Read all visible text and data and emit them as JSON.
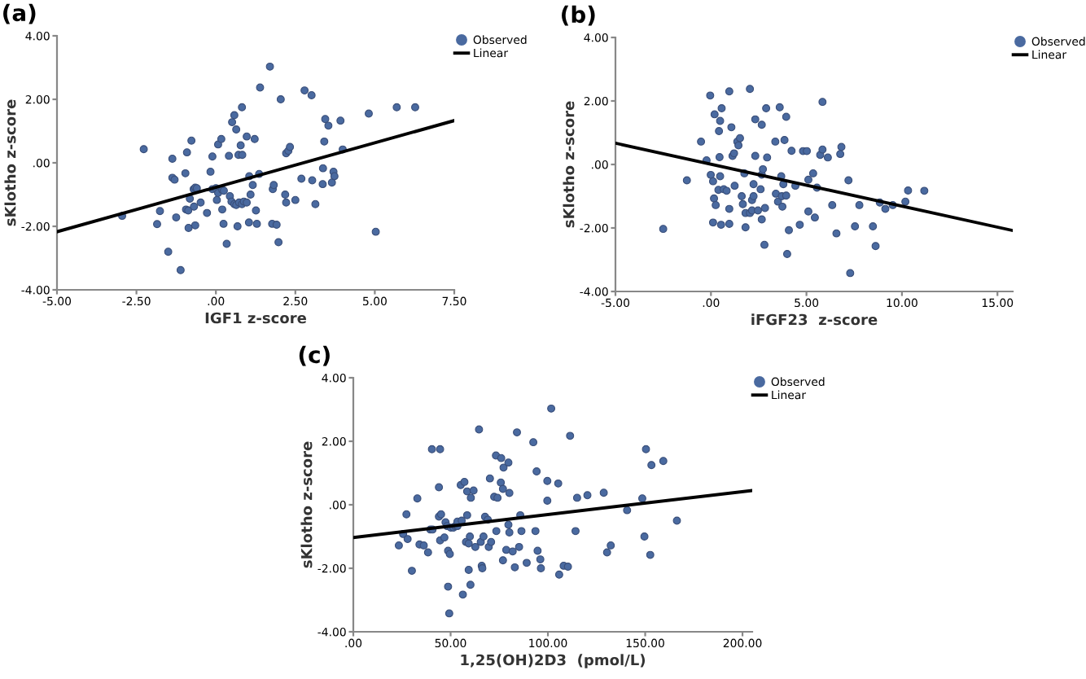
{
  "chart_data": [
    {
      "type": "scatter",
      "annotations": [
        "(a)"
      ],
      "xlabel": "IGF1 z-score",
      "ylabel": "sKlotho z-score",
      "legend": "top right",
      "xlim": [
        -5,
        7.5
      ],
      "ylim": [
        -4,
        4
      ],
      "xticks": [
        {
          "value": -5,
          "label": "-5.00"
        },
        {
          "value": -2.5,
          "label": "-2.50"
        },
        {
          "value": 0,
          "label": ".00"
        },
        {
          "value": 2.5,
          "label": "2.50"
        },
        {
          "value": 5,
          "label": "5.00"
        },
        {
          "value": 7.5,
          "label": "7.50"
        }
      ],
      "yticks": [
        {
          "value": -4,
          "label": "-4.00"
        },
        {
          "value": -2,
          "label": "-2.00"
        },
        {
          "value": 0,
          "label": ".00"
        },
        {
          "value": 2,
          "label": "2.00"
        },
        {
          "value": 4,
          "label": "4.00"
        }
      ],
      "series": [
        {
          "name": "Observed",
          "color": "#4a6aa0",
          "marker": "circle",
          "x": [
            -2.95,
            -2.27,
            -1.85,
            -1.76,
            -1.5,
            -1.37,
            -1.37,
            -1.3,
            -1.25,
            -1.11,
            -0.96,
            -0.91,
            -0.94,
            -0.87,
            -0.86,
            -0.82,
            -0.77,
            -0.7,
            -0.65,
            -0.6,
            -0.69,
            -0.65,
            -0.48,
            -0.28,
            -0.17,
            -0.11,
            -0.11,
            0.0,
            0.03,
            0.07,
            0.07,
            0.17,
            0.2,
            0.25,
            0.2,
            0.24,
            0.34,
            0.41,
            0.44,
            0.49,
            0.51,
            0.58,
            0.58,
            0.64,
            0.64,
            0.68,
            0.71,
            0.73,
            0.78,
            0.82,
            0.83,
            0.82,
            0.88,
            0.97,
            0.97,
            1.05,
            1.04,
            1.09,
            1.16,
            1.22,
            1.26,
            1.29,
            1.39,
            1.36,
            1.79,
            1.77,
            1.82,
            1.7,
            1.91,
            1.97,
            2.04,
            2.18,
            2.21,
            2.28,
            2.33,
            2.21,
            2.5,
            2.69,
            2.79,
            3.01,
            3.03,
            3.13,
            3.36,
            3.37,
            3.41,
            3.44,
            3.54,
            3.65,
            3.7,
            3.73,
            3.92,
            3.99,
            4.81,
            5.03,
            5.69,
            6.27
          ],
          "values": [
            -1.67,
            0.43,
            -1.93,
            -1.52,
            -2.8,
            0.13,
            -0.47,
            -0.53,
            -1.72,
            -3.38,
            -0.33,
            0.33,
            -1.47,
            -1.5,
            -2.05,
            -1.13,
            0.7,
            -0.83,
            -0.78,
            -0.8,
            -1.38,
            -1.97,
            -1.25,
            -1.58,
            -0.28,
            0.2,
            -0.83,
            -0.8,
            -1.17,
            -0.95,
            0.58,
            0.75,
            -0.85,
            -0.88,
            -1.47,
            -1.92,
            -2.55,
            0.22,
            -1.05,
            -1.22,
            1.28,
            1.5,
            -1.3,
            -1.33,
            1.05,
            -2.0,
            0.25,
            -1.25,
            0.55,
            1.75,
            0.25,
            -1.3,
            -1.22,
            -1.25,
            0.83,
            -0.42,
            -1.88,
            -1.0,
            -0.7,
            0.75,
            -1.5,
            -1.92,
            2.37,
            -0.35,
            -0.83,
            -1.92,
            -0.7,
            3.03,
            -1.95,
            -2.5,
            2.0,
            -1.0,
            0.3,
            0.38,
            0.5,
            -1.25,
            -1.17,
            -0.5,
            2.28,
            2.13,
            -0.55,
            -1.3,
            -0.67,
            -0.17,
            0.67,
            1.38,
            1.17,
            -0.62,
            -0.28,
            -0.42,
            1.33,
            0.42,
            1.55,
            -2.17,
            1.75,
            1.75
          ]
        },
        {
          "name": "Linear",
          "type": "line",
          "color": "#000000",
          "x": [
            -5,
            7.5
          ],
          "values": [
            -2.17,
            1.33
          ]
        }
      ]
    },
    {
      "type": "scatter",
      "annotations": [
        "(b)"
      ],
      "xlabel": "iFGF23  z-score",
      "ylabel": "sKlotho z-score",
      "legend": "top right",
      "xlim": [
        -5,
        15.8
      ],
      "ylim": [
        -4,
        4
      ],
      "xticks": [
        {
          "value": -5,
          "label": "-5.00"
        },
        {
          "value": 0,
          "label": ".00"
        },
        {
          "value": 5,
          "label": "5.00"
        },
        {
          "value": 10,
          "label": "10.00"
        },
        {
          "value": 15,
          "label": "15.00"
        }
      ],
      "yticks": [
        {
          "value": -4,
          "label": "-4.00"
        },
        {
          "value": -2,
          "label": "-2.00"
        },
        {
          "value": 0,
          "label": ".00"
        },
        {
          "value": 2,
          "label": "2.00"
        },
        {
          "value": 4,
          "label": "4.00"
        }
      ],
      "series": [
        {
          "name": "Observed",
          "color": "#4a6aa0",
          "marker": "circle",
          "x": [
            -2.5,
            -1.26,
            -0.52,
            -0.23,
            -0.04,
            -0.01,
            0.11,
            0.16,
            0.19,
            0.25,
            0.11,
            0.39,
            0.48,
            0.42,
            0.48,
            0.45,
            0.56,
            0.53,
            0.67,
            0.82,
            0.96,
            0.96,
            0.96,
            1.07,
            1.13,
            1.21,
            1.24,
            1.38,
            1.44,
            1.52,
            1.61,
            1.67,
            1.75,
            1.81,
            1.81,
            2.04,
            2.04,
            2.15,
            2.15,
            2.23,
            2.23,
            2.32,
            2.32,
            2.46,
            2.6,
            2.66,
            2.72,
            2.66,
            2.66,
            2.83,
            2.8,
            2.89,
            2.94,
            3.37,
            3.4,
            3.51,
            3.6,
            3.68,
            3.71,
            3.74,
            3.79,
            3.85,
            3.94,
            3.94,
            3.99,
            4.08,
            4.22,
            4.42,
            4.65,
            4.82,
            5.02,
            5.1,
            5.1,
            5.35,
            5.44,
            5.55,
            5.72,
            5.84,
            5.84,
            6.12,
            6.35,
            6.57,
            6.77,
            6.83,
            7.2,
            7.29,
            7.54,
            7.77,
            8.48,
            8.62,
            8.84,
            9.13,
            9.52,
            10.18,
            10.32,
            11.17
          ],
          "values": [
            -2.03,
            -0.5,
            0.72,
            0.13,
            2.17,
            -0.33,
            -0.53,
            -1.07,
            1.58,
            -1.28,
            -1.83,
            -0.8,
            -0.37,
            1.05,
            1.37,
            0.23,
            1.77,
            -1.9,
            -0.78,
            -0.83,
            2.3,
            -1.87,
            -1.4,
            1.17,
            0.27,
            0.35,
            -0.67,
            0.72,
            0.6,
            0.83,
            -1.0,
            -1.25,
            -0.28,
            -1.53,
            -1.98,
            2.38,
            -1.53,
            -1.45,
            -1.12,
            -1.0,
            -0.62,
            0.27,
            1.42,
            -1.45,
            -0.78,
            -0.32,
            -0.15,
            1.25,
            -1.73,
            -1.37,
            -2.53,
            1.77,
            0.22,
            0.72,
            -0.92,
            -1.17,
            1.8,
            -0.37,
            -1.0,
            -1.33,
            -0.62,
            0.77,
            1.5,
            -0.98,
            -2.82,
            -2.07,
            0.43,
            -0.67,
            -1.9,
            0.42,
            0.42,
            -0.48,
            -1.48,
            -0.28,
            -1.67,
            -0.73,
            0.3,
            0.47,
            1.97,
            0.22,
            -1.28,
            -2.17,
            0.33,
            0.55,
            -0.5,
            -3.42,
            -1.95,
            -1.28,
            -1.95,
            -2.57,
            -1.2,
            -1.4,
            -1.28,
            -1.17,
            -0.82,
            -0.83
          ]
        },
        {
          "name": "Linear",
          "type": "line",
          "color": "#000000",
          "x": [
            -5,
            15.8
          ],
          "values": [
            0.67,
            -2.08
          ]
        }
      ]
    },
    {
      "type": "scatter",
      "annotations": [
        "(c)"
      ],
      "xlabel": "1,25(OH)2D3  (pmol/L)",
      "ylabel": "sKlotho z-score",
      "legend": "top right",
      "xlim": [
        0,
        205
      ],
      "ylim": [
        -4,
        4
      ],
      "xticks": [
        {
          "value": 0,
          "label": ".00"
        },
        {
          "value": 50,
          "label": "50.00"
        },
        {
          "value": 100,
          "label": "100.00"
        },
        {
          "value": 150,
          "label": "150.00"
        },
        {
          "value": 200,
          "label": "200.00"
        }
      ],
      "yticks": [
        {
          "value": -4,
          "label": "-4.00"
        },
        {
          "value": -2,
          "label": "-2.00"
        },
        {
          "value": 0,
          "label": ".00"
        },
        {
          "value": 2,
          "label": "2.00"
        },
        {
          "value": 4,
          "label": "4.00"
        }
      ],
      "series": [
        {
          "name": "Observed",
          "color": "#4a6aa0",
          "marker": "circle",
          "x": [
            23.4,
            25.6,
            27.3,
            27.9,
            30.1,
            32.9,
            34,
            36.2,
            38.4,
            39.6,
            40.7,
            40.4,
            44,
            44.6,
            44,
            45.1,
            44.6,
            46.8,
            47.4,
            48.2,
            48.7,
            48.7,
            49.6,
            49.3,
            50.1,
            51.5,
            52.4,
            53.5,
            53.5,
            55.2,
            55.7,
            56.3,
            57.1,
            57.9,
            59.3,
            58.5,
            58.5,
            59.3,
            59.9,
            60.2,
            60.4,
            61.8,
            62.7,
            64.6,
            65.5,
            66,
            66.3,
            66.9,
            67.7,
            69.1,
            69.6,
            70.2,
            70.8,
            72.4,
            74.1,
            73.3,
            73.5,
            75.8,
            76.9,
            76,
            77.2,
            76.9,
            78.6,
            79.7,
            80.2,
            79.7,
            80.2,
            81.9,
            83,
            84.1,
            85.8,
            85.2,
            86.4,
            89.1,
            92.5,
            93.6,
            94.2,
            94.7,
            96.1,
            96.4,
            99.7,
            99.7,
            101.7,
            105.3,
            105.8,
            108.1,
            110.3,
            111.4,
            114.2,
            115,
            120.3,
            128.7,
            130.4,
            132.3,
            140.7,
            148.5,
            149.6,
            150.4,
            152.6,
            153.2,
            159.3,
            166.3
          ],
          "values": [
            -1.28,
            -0.92,
            -0.3,
            -1.08,
            -2.08,
            0.2,
            -1.25,
            -1.28,
            -1.5,
            -0.78,
            -0.78,
            1.75,
            0.55,
            1.75,
            -0.37,
            -0.3,
            -1.12,
            -1.03,
            -0.55,
            -0.67,
            -2.58,
            -1.45,
            -1.55,
            -3.42,
            -0.72,
            -0.72,
            -0.67,
            -0.67,
            -0.53,
            0.62,
            -0.5,
            -2.83,
            0.72,
            -1.17,
            -1.22,
            -0.33,
            0.42,
            -2.05,
            -1.0,
            -2.52,
            0.22,
            0.45,
            -1.33,
            2.37,
            -1.17,
            -1.92,
            -2.0,
            -1.0,
            -0.38,
            -0.47,
            -1.33,
            0.83,
            -1.17,
            0.25,
            0.22,
            1.55,
            -0.83,
            0.7,
            0.5,
            1.47,
            1.17,
            -1.75,
            -1.42,
            -0.63,
            -0.87,
            1.33,
            0.37,
            -1.47,
            -1.97,
            2.28,
            -0.33,
            -1.33,
            -0.83,
            -1.83,
            1.97,
            -0.83,
            1.05,
            -1.45,
            -1.72,
            -2.0,
            0.75,
            0.13,
            3.03,
            0.67,
            -2.2,
            -1.92,
            -1.95,
            2.17,
            -0.83,
            0.22,
            0.3,
            0.38,
            -1.5,
            -1.28,
            -0.17,
            0.2,
            -1.0,
            1.75,
            -1.58,
            1.25,
            1.38,
            -0.5
          ]
        },
        {
          "name": "Linear",
          "type": "line",
          "color": "#000000",
          "x": [
            0,
            205
          ],
          "values": [
            -1.03,
            0.45
          ]
        }
      ]
    }
  ]
}
